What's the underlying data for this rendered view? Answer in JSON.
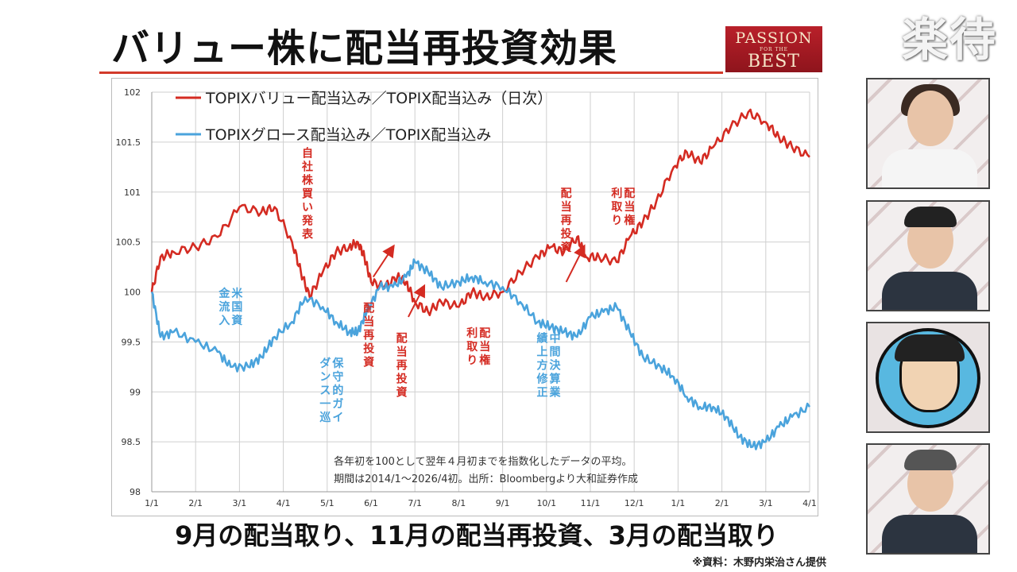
{
  "header": {
    "title": "バリュー株に配当再投資効果",
    "logo_line1": "PASSION",
    "logo_line2": "FOR THE",
    "logo_line3": "BEST",
    "brand": "楽待"
  },
  "caption": "9月の配当取り、11月の配当再投資、3月の配当取り",
  "source": "※資料：木野内栄治さん提供",
  "colors": {
    "value": "#d42b22",
    "growth": "#4aa3dc",
    "grid": "#cfcfcf",
    "title_rule": "#d23a2a"
  },
  "panels": [
    {
      "name": "presenter-woman"
    },
    {
      "name": "guest-man"
    },
    {
      "name": "caricature"
    },
    {
      "name": "host-man"
    }
  ],
  "chart_data": {
    "type": "line",
    "x_ticks": [
      "1/1",
      "2/1",
      "3/1",
      "4/1",
      "5/1",
      "6/1",
      "7/1",
      "8/1",
      "9/1",
      "10/1",
      "11/1",
      "12/1",
      "1/1",
      "2/1",
      "3/1",
      "4/1"
    ],
    "yticks": [
      "102",
      "101.5",
      "101",
      "100.5",
      "100",
      "99.5",
      "99",
      "98.5",
      "98"
    ],
    "ylim": [
      98,
      102
    ],
    "grid": true,
    "legend_position": "top-left",
    "series": [
      {
        "name": "TOPIXバリュー配当込み／TOPIX配当込み（日次）",
        "color": "#d42b22",
        "points": [
          [
            0,
            100
          ],
          [
            0.2,
            100.35
          ],
          [
            0.5,
            100.4
          ],
          [
            1.0,
            100.45
          ],
          [
            1.5,
            100.55
          ],
          [
            2.0,
            100.85
          ],
          [
            2.5,
            100.8
          ],
          [
            2.8,
            100.85
          ],
          [
            3.2,
            100.5
          ],
          [
            3.4,
            100.2
          ],
          [
            3.6,
            99.95
          ],
          [
            3.9,
            100.2
          ],
          [
            4.2,
            100.4
          ],
          [
            4.5,
            100.45
          ],
          [
            4.7,
            100.5
          ],
          [
            4.85,
            100.35
          ],
          [
            5.0,
            100.1
          ],
          [
            5.3,
            100.05
          ],
          [
            5.6,
            100.15
          ],
          [
            5.8,
            100.1
          ],
          [
            6.0,
            99.9
          ],
          [
            6.3,
            99.8
          ],
          [
            6.6,
            99.9
          ],
          [
            7.0,
            99.85
          ],
          [
            7.3,
            100.0
          ],
          [
            7.6,
            99.95
          ],
          [
            8.0,
            100.0
          ],
          [
            8.4,
            100.2
          ],
          [
            8.8,
            100.35
          ],
          [
            9.1,
            100.45
          ],
          [
            9.4,
            100.4
          ],
          [
            9.7,
            100.55
          ],
          [
            9.9,
            100.35
          ],
          [
            10.2,
            100.35
          ],
          [
            10.6,
            100.3
          ],
          [
            10.9,
            100.55
          ],
          [
            11.2,
            100.7
          ],
          [
            11.5,
            100.9
          ],
          [
            11.9,
            101.25
          ],
          [
            12.2,
            101.4
          ],
          [
            12.5,
            101.3
          ],
          [
            12.8,
            101.45
          ],
          [
            13.2,
            101.65
          ],
          [
            13.6,
            101.8
          ],
          [
            14.0,
            101.7
          ],
          [
            14.3,
            101.55
          ],
          [
            14.6,
            101.45
          ],
          [
            15.0,
            101.35
          ]
        ]
      },
      {
        "name": "TOPIXグロース配当込み／TOPIX配当込み",
        "color": "#4aa3dc",
        "points": [
          [
            0,
            100
          ],
          [
            0.2,
            99.55
          ],
          [
            0.5,
            99.6
          ],
          [
            1.0,
            99.5
          ],
          [
            1.5,
            99.4
          ],
          [
            1.8,
            99.25
          ],
          [
            2.2,
            99.25
          ],
          [
            2.5,
            99.35
          ],
          [
            2.8,
            99.55
          ],
          [
            3.2,
            99.7
          ],
          [
            3.5,
            99.95
          ],
          [
            3.9,
            99.85
          ],
          [
            4.2,
            99.7
          ],
          [
            4.5,
            99.6
          ],
          [
            4.7,
            99.6
          ],
          [
            4.9,
            99.8
          ],
          [
            5.2,
            100.05
          ],
          [
            5.5,
            100.05
          ],
          [
            5.8,
            100.15
          ],
          [
            6.0,
            100.3
          ],
          [
            6.3,
            100.2
          ],
          [
            6.6,
            100.05
          ],
          [
            7.0,
            100.1
          ],
          [
            7.3,
            100.15
          ],
          [
            7.6,
            100.1
          ],
          [
            8.0,
            100.05
          ],
          [
            8.4,
            99.9
          ],
          [
            8.8,
            99.7
          ],
          [
            9.1,
            99.65
          ],
          [
            9.4,
            99.6
          ],
          [
            9.7,
            99.55
          ],
          [
            10.0,
            99.75
          ],
          [
            10.3,
            99.8
          ],
          [
            10.6,
            99.85
          ],
          [
            10.9,
            99.6
          ],
          [
            11.2,
            99.35
          ],
          [
            11.6,
            99.25
          ],
          [
            11.9,
            99.15
          ],
          [
            12.2,
            98.95
          ],
          [
            12.5,
            98.85
          ],
          [
            12.8,
            98.85
          ],
          [
            13.1,
            98.75
          ],
          [
            13.4,
            98.55
          ],
          [
            13.7,
            98.45
          ],
          [
            14.0,
            98.5
          ],
          [
            14.3,
            98.65
          ],
          [
            14.6,
            98.75
          ],
          [
            15.0,
            98.85
          ]
        ]
      }
    ],
    "annotations": [
      {
        "text": "自社株買い発表",
        "color": "#d42b22",
        "x": 3.55,
        "y": 101.35
      },
      {
        "text": "配当再投資",
        "color": "#d42b22",
        "x": 4.95,
        "y": 99.8
      },
      {
        "text": "配当再投資",
        "color": "#d42b22",
        "x": 5.7,
        "y": 99.5
      },
      {
        "text": "配当権利取り",
        "color": "#d42b22",
        "x": 7.45,
        "y": 99.55,
        "cols": 2
      },
      {
        "text": "配当再投資",
        "color": "#d42b22",
        "x": 9.45,
        "y": 100.95
      },
      {
        "text": "配当権利取り",
        "color": "#d42b22",
        "x": 10.75,
        "y": 100.95,
        "cols": 2
      },
      {
        "text": "米国資金流入",
        "color": "#4aa3dc",
        "x": 1.8,
        "y": 99.95,
        "cols": 2
      },
      {
        "text": "保守的ガイダンス一巡",
        "color": "#4aa3dc",
        "x": 4.1,
        "y": 99.25,
        "cols": 2
      },
      {
        "text": "中間決算業績上方修正",
        "color": "#4aa3dc",
        "x": 9.05,
        "y": 99.5,
        "cols": 2
      }
    ],
    "arrows": [
      {
        "from": [
          5.05,
          100.15
        ],
        "to": [
          5.5,
          100.45
        ]
      },
      {
        "from": [
          5.85,
          99.75
        ],
        "to": [
          6.2,
          100.05
        ]
      },
      {
        "from": [
          9.45,
          100.1
        ],
        "to": [
          9.85,
          100.45
        ]
      }
    ],
    "notes": [
      "各年初を100として翌年４月初までを指数化したデータの平均。",
      "期間は2014/1～2026/4初。出所：Bloombergより大和証券作成"
    ]
  }
}
